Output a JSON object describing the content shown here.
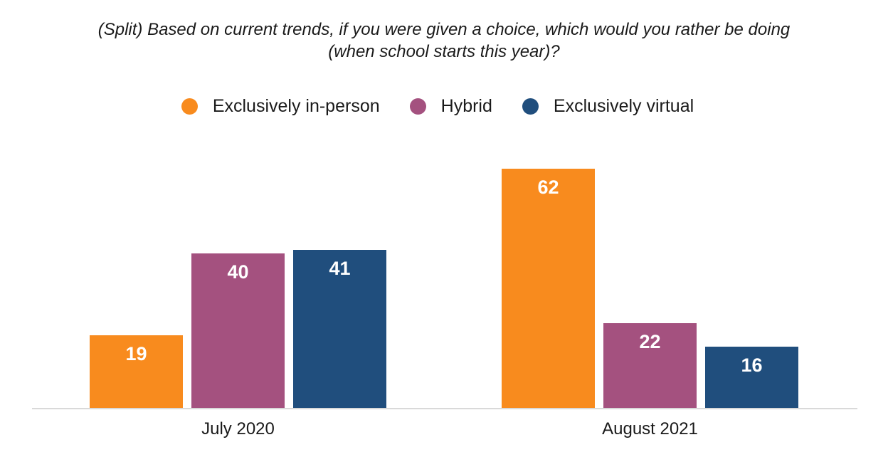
{
  "title": "(Split) Based on current trends, if you were given a choice, which would you rather be doing (when school starts this year)?",
  "chart_data": {
    "type": "bar",
    "categories": [
      "July 2020",
      "August 2021"
    ],
    "series": [
      {
        "name": "Exclusively in-person",
        "color": "#F88B1E",
        "values": [
          19,
          62
        ]
      },
      {
        "name": "Hybrid",
        "color": "#A4517F",
        "values": [
          40,
          22
        ]
      },
      {
        "name": "Exclusively virtual",
        "color": "#204E7D",
        "values": [
          41,
          16
        ]
      }
    ],
    "value_labels_shown": true,
    "value_label_color": "#FFFFFF",
    "ylim": [
      0,
      72
    ],
    "grid": false,
    "legend_position": "top",
    "axis_line_color": "#D9D9D9",
    "text_color": "#1A1A1A",
    "background_color": "#FFFFFF"
  }
}
